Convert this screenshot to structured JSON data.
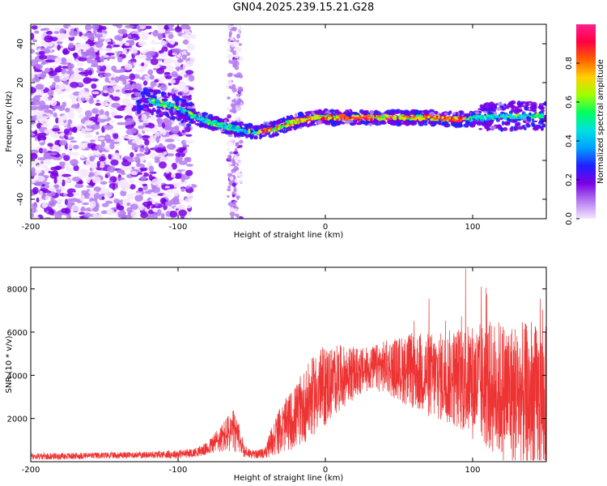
{
  "title": "GN04.2025.239.15.21.G28",
  "chart_data": [
    {
      "type": "heatmap",
      "xlabel": "Height of straight line (km)",
      "ylabel": "Frequency (Hz)",
      "xlim": [
        -200,
        150
      ],
      "ylim": [
        -50,
        50
      ],
      "xticks": [
        -200,
        -100,
        0,
        100
      ],
      "yticks": [
        -40,
        -20,
        0,
        20,
        40
      ],
      "colorbar": {
        "label": "Normalized spectral amplitude",
        "range": [
          0,
          1
        ],
        "ticks": [
          "0.0",
          "0.2",
          "0.4",
          "0.6",
          "0.8"
        ],
        "tick_values": [
          0.0,
          0.2,
          0.4,
          0.6,
          0.8
        ],
        "colors": [
          "#f5e6ff",
          "#b47cf0",
          "#7a00e6",
          "#2020ff",
          "#00a0ff",
          "#00e0e0",
          "#00ff60",
          "#a0ff00",
          "#ffd000",
          "#ff6000",
          "#ff0040",
          "#ff2090"
        ]
      },
      "ridge": {
        "x": [
          -130,
          -115,
          -100,
          -90,
          -80,
          -70,
          -60,
          -52,
          -45,
          -35,
          -25,
          -15,
          -5,
          0,
          10,
          30,
          50,
          70,
          90,
          110,
          130,
          150
        ],
        "y": [
          12,
          10,
          7,
          3,
          0,
          -2,
          -4,
          -5,
          -5,
          -4,
          -1,
          1,
          2,
          2,
          2,
          2,
          2,
          2,
          1,
          2,
          3,
          3
        ]
      }
    },
    {
      "type": "line",
      "xlabel": "Height of straight line (km)",
      "ylabel": "SNR (10 * v/v)",
      "xlim": [
        -200,
        150
      ],
      "ylim": [
        0,
        9000
      ],
      "xticks": [
        -200,
        -100,
        0,
        100
      ],
      "yticks": [
        2000,
        4000,
        6000,
        8000
      ],
      "series": [
        {
          "name": "SNR",
          "color": "#ee3333",
          "x": [
            -200,
            -180,
            -160,
            -140,
            -120,
            -100,
            -90,
            -80,
            -75,
            -70,
            -66,
            -62,
            -58,
            -55,
            -50,
            -45,
            -40,
            -37,
            -34,
            -30,
            -25,
            -20,
            -15,
            -10,
            -5,
            0,
            10,
            20,
            30,
            40,
            50,
            60,
            70,
            80,
            90,
            100,
            110,
            120,
            130,
            140,
            150
          ],
          "y": [
            250,
            250,
            280,
            300,
            320,
            350,
            400,
            600,
            900,
            1100,
            1300,
            1400,
            1000,
            500,
            350,
            350,
            450,
            900,
            1200,
            1500,
            1800,
            2100,
            2500,
            2900,
            3300,
            3500,
            3900,
            4100,
            4300,
            4400,
            4300,
            4200,
            4000,
            3900,
            3900,
            3700,
            3500,
            3300,
            3100,
            2900,
            2800
          ],
          "spread": [
            150,
            150,
            150,
            150,
            150,
            200,
            200,
            300,
            500,
            700,
            900,
            1000,
            600,
            300,
            200,
            200,
            300,
            700,
            900,
            1100,
            1300,
            1500,
            1700,
            1800,
            1900,
            1900,
            1500,
            1200,
            1000,
            1200,
            1500,
            1800,
            2000,
            2100,
            2400,
            2700,
            3000,
            3300,
            3400,
            3500,
            3500
          ]
        }
      ]
    }
  ]
}
